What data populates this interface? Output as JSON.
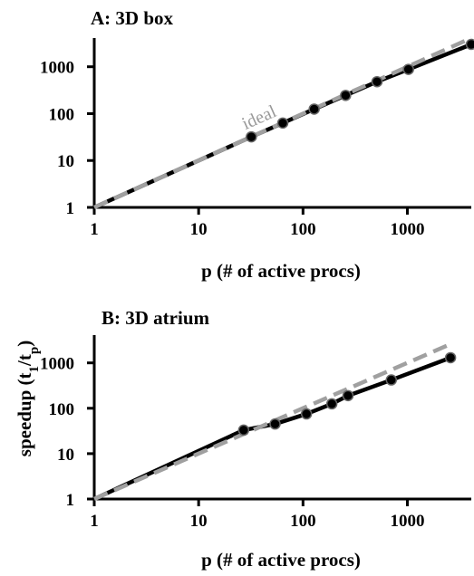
{
  "chart_data": [
    {
      "type": "line",
      "title": "A: 3D box",
      "xlabel": "p (# of active procs)",
      "ylabel": "",
      "xscale": "log",
      "yscale": "log",
      "xlim": [
        1,
        4096
      ],
      "ylim": [
        1,
        4096
      ],
      "x_ticks": [
        "1",
        "10",
        "100",
        "1000"
      ],
      "y_ticks": [
        "1",
        "10",
        "100",
        "1000"
      ],
      "annotation": "ideal",
      "grid": false,
      "series": [
        {
          "role": "measured",
          "color": "#000000",
          "x": [
            1,
            32,
            64,
            128,
            256,
            512,
            1024,
            4096
          ],
          "y": [
            1,
            32,
            63,
            125,
            245,
            480,
            880,
            3000
          ]
        },
        {
          "role": "ideal",
          "color": "#a0a0a0",
          "dashed": true,
          "x": [
            1,
            4096
          ],
          "y": [
            1,
            4096
          ]
        }
      ]
    },
    {
      "type": "line",
      "title": "B: 3D atrium",
      "xlabel": "p (# of active procs)",
      "ylabel_main": "speedup (t",
      "ylabel_sub1": "1",
      "ylabel_mid": "/t",
      "ylabel_sub2": "p",
      "ylabel_end": ")",
      "xscale": "log",
      "yscale": "log",
      "xlim": [
        1,
        4096
      ],
      "ylim": [
        1,
        4096
      ],
      "x_ticks": [
        "1",
        "10",
        "100",
        "1000"
      ],
      "y_ticks": [
        "1",
        "10",
        "100",
        "1000"
      ],
      "grid": false,
      "series": [
        {
          "role": "measured",
          "color": "#000000",
          "x": [
            1,
            27,
            54,
            108,
            189,
            270,
            702,
            2592
          ],
          "y": [
            1,
            33,
            45,
            75,
            125,
            190,
            420,
            1300
          ]
        },
        {
          "role": "ideal",
          "color": "#a0a0a0",
          "dashed": true,
          "x": [
            1,
            2592
          ],
          "y": [
            1,
            2592
          ]
        }
      ]
    }
  ]
}
